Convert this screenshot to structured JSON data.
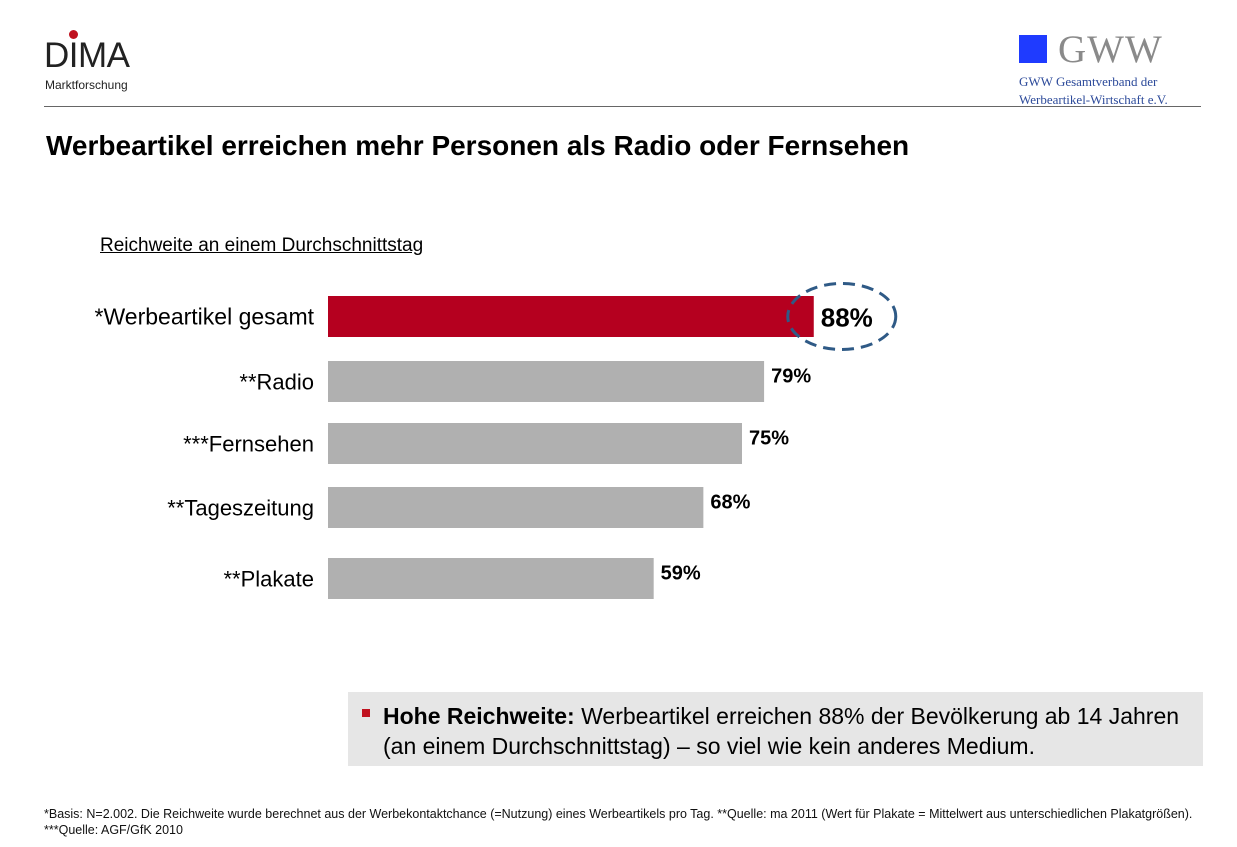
{
  "header": {
    "dima_logo": {
      "word": "DIMA",
      "subtitle": "Marktforschung"
    },
    "gww_logo": {
      "word": "GWW",
      "line1": "GWW Gesamtverband der",
      "line2": "Werbeartikel-Wirtschaft e.V."
    },
    "title": "Werbeartikel erreichen mehr Personen als Radio oder Fernsehen"
  },
  "chart_data": {
    "type": "bar",
    "orientation": "horizontal",
    "title": "Reichweite an einem Durchschnittstag",
    "categories": [
      "*Werbeartikel gesamt",
      "**Radio",
      "***Fernsehen",
      "**Tageszeitung",
      "**Plakate"
    ],
    "values": [
      88,
      79,
      75,
      68,
      59
    ],
    "value_labels": [
      "88%",
      "79%",
      "75%",
      "68%",
      "59%"
    ],
    "unit": "%",
    "xlim": [
      0,
      100
    ],
    "highlight_index": 0,
    "colors": {
      "highlight": "#b5001f",
      "default": "#b0b0b0",
      "annotation": "#2f5a86"
    },
    "grid": false,
    "legend": "none"
  },
  "callout": {
    "bold": "Hohe Reichweite:",
    "text": " Werbeartikel erreichen 88% der Bevölkerung ab 14 Jahren (an einem Durchschnittstag) – so viel wie kein anderes Medium."
  },
  "footnote": "*Basis: N=2.002. Die Reichweite wurde berechnet aus der Werbekontaktchance (=Nutzung) eines Werbeartikels pro Tag. **Quelle: ma 2011 (Wert für Plakate = Mittelwert aus unterschiedlichen Plakatgrößen). ***Quelle: AGF/GfK 2010"
}
